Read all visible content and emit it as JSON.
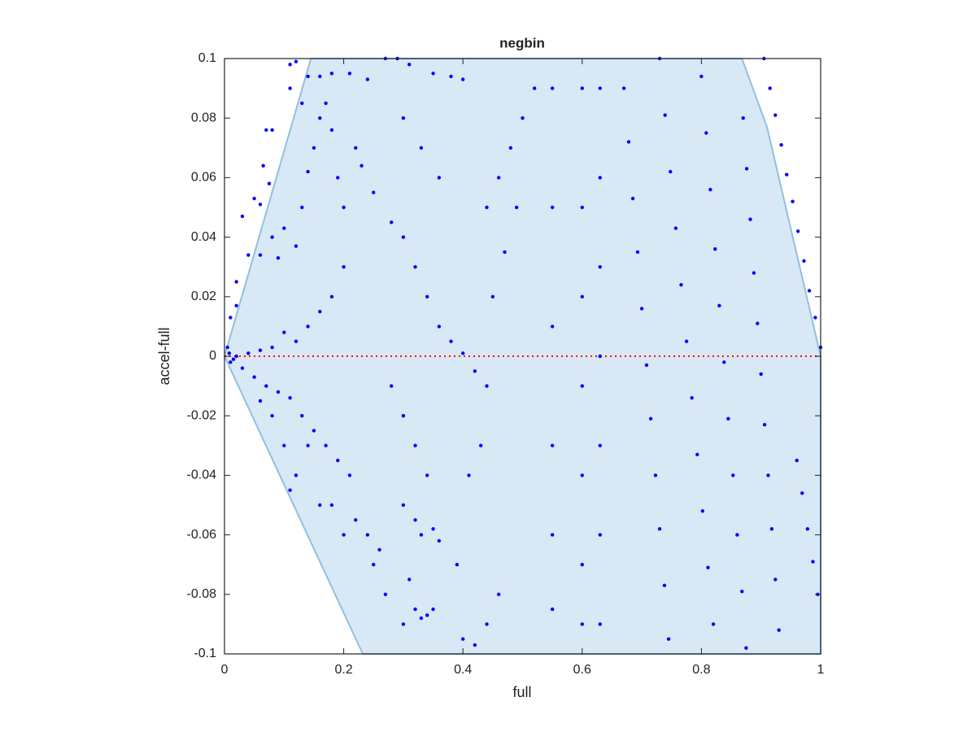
{
  "chart_data": {
    "type": "scatter",
    "title": "negbin",
    "xlabel": "full",
    "ylabel": "accel-full",
    "xlim": [
      0,
      1
    ],
    "ylim": [
      -0.1,
      0.1
    ],
    "xticks": [
      0,
      0.2,
      0.4,
      0.6,
      0.8,
      1
    ],
    "yticks": [
      -0.1,
      -0.08,
      -0.06,
      -0.04,
      -0.02,
      0,
      0.02,
      0.04,
      0.06,
      0.08,
      0.1
    ],
    "color": "#0000ff",
    "hline": 0,
    "hline_color": "#ff0000",
    "region": {
      "color": "#d9e8f5",
      "edge_color": "#8fc0e0",
      "x": [
        0,
        0.145,
        0.868,
        0.91,
        1,
        1,
        0.232
      ],
      "y": [
        0,
        0.1,
        0.1,
        0.077,
        0,
        -0.1,
        -0.1
      ]
    },
    "x": [
      0.11,
      0.12,
      0.11,
      0.07,
      0.08,
      0.065,
      0.075,
      0.05,
      0.06,
      0.03,
      0.02,
      0.01,
      0.02,
      0.04,
      0.06,
      0.08,
      0.09,
      0.1,
      0.12,
      0.13,
      0.14,
      0.15,
      0.16,
      0.17,
      0.18,
      0.19,
      0.2,
      0.13,
      0.14,
      0.16,
      0.18,
      0.21,
      0.24,
      0.22,
      0.23,
      0.25,
      0.2,
      0.18,
      0.16,
      0.14,
      0.12,
      0.1,
      0.08,
      0.06,
      0.04,
      0.02,
      0.01,
      0.03,
      0.05,
      0.07,
      0.09,
      0.11,
      0.13,
      0.15,
      0.17,
      0.19,
      0.21,
      0.12,
      0.11,
      0.14,
      0.16,
      0.18,
      0.2,
      0.22,
      0.24,
      0.26,
      0.08,
      0.06,
      0.1,
      0.005,
      0.015,
      0.008,
      0.27,
      0.29,
      0.31,
      0.35,
      0.38,
      0.4,
      0.3,
      0.33,
      0.36,
      0.28,
      0.3,
      0.32,
      0.34,
      0.36,
      0.38,
      0.4,
      0.42,
      0.44,
      0.28,
      0.3,
      0.32,
      0.34,
      0.3,
      0.32,
      0.33,
      0.35,
      0.36,
      0.31,
      0.32,
      0.33,
      0.34,
      0.35,
      0.3,
      0.4,
      0.42,
      0.44,
      0.46,
      0.27,
      0.25,
      0.39,
      0.41,
      0.43,
      0.45,
      0.47,
      0.49,
      0.48,
      0.5,
      0.52,
      0.46,
      0.44,
      0.55,
      0.55,
      0.55,
      0.55,
      0.55,
      0.55,
      0.6,
      0.6,
      0.6,
      0.6,
      0.6,
      0.6,
      0.6,
      0.63,
      0.63,
      0.63,
      0.63,
      0.63,
      0.63,
      0.63,
      0.67,
      0.678,
      0.685,
      0.693,
      0.7,
      0.708,
      0.715,
      0.723,
      0.73,
      0.738,
      0.745,
      0.73,
      0.739,
      0.748,
      0.757,
      0.766,
      0.775,
      0.784,
      0.793,
      0.802,
      0.811,
      0.82,
      0.8,
      0.808,
      0.815,
      0.823,
      0.83,
      0.838,
      0.845,
      0.853,
      0.86,
      0.868,
      0.875,
      0.87,
      0.876,
      0.882,
      0.888,
      0.894,
      0.9,
      0.906,
      0.912,
      0.918,
      0.924,
      0.93,
      0.905,
      0.915,
      0.924,
      0.934,
      0.943,
      0.953,
      0.962,
      0.972,
      0.981,
      0.991,
      1,
      0.96,
      0.969,
      0.978,
      0.987,
      0.995
    ],
    "y": [
      0.098,
      0.099,
      0.09,
      0.076,
      0.076,
      0.064,
      0.058,
      0.053,
      0.051,
      0.047,
      0.025,
      0.013,
      0.017,
      0.034,
      0.034,
      0.04,
      0.033,
      0.043,
      0.037,
      0.05,
      0.062,
      0.07,
      0.08,
      0.085,
      0.076,
      0.06,
      0.05,
      0.085,
      0.094,
      0.094,
      0.095,
      0.095,
      0.093,
      0.07,
      0.064,
      0.055,
      0.03,
      0.02,
      0.015,
      0.01,
      0.005,
      0.008,
      0.003,
      0.002,
      0.001,
      0,
      -0.002,
      -0.004,
      -0.007,
      -0.01,
      -0.012,
      -0.014,
      -0.02,
      -0.025,
      -0.03,
      -0.035,
      -0.04,
      -0.04,
      -0.045,
      -0.03,
      -0.05,
      -0.05,
      -0.06,
      -0.055,
      -0.06,
      -0.065,
      -0.02,
      -0.015,
      -0.03,
      0.003,
      -0.001,
      0.001,
      0.1,
      0.1,
      0.098,
      0.095,
      0.094,
      0.093,
      0.08,
      0.07,
      0.06,
      0.045,
      0.04,
      0.03,
      0.02,
      0.01,
      0.005,
      0.001,
      -0.005,
      -0.01,
      -0.01,
      -0.02,
      -0.03,
      -0.04,
      -0.05,
      -0.055,
      -0.06,
      -0.058,
      -0.062,
      -0.075,
      -0.085,
      -0.088,
      -0.087,
      -0.085,
      -0.09,
      -0.095,
      -0.097,
      -0.09,
      -0.08,
      -0.08,
      -0.07,
      -0.07,
      -0.04,
      -0.03,
      0.02,
      0.035,
      0.05,
      0.07,
      0.08,
      0.09,
      0.06,
      0.05,
      0.09,
      0.05,
      0.01,
      -0.03,
      -0.06,
      -0.085,
      0.09,
      0.05,
      0.02,
      -0.01,
      -0.04,
      -0.07,
      -0.09,
      0.09,
      0.06,
      0.03,
      0,
      -0.03,
      -0.06,
      -0.09,
      0.09,
      0.072,
      0.053,
      0.035,
      0.016,
      -0.003,
      -0.021,
      -0.04,
      -0.058,
      -0.077,
      -0.095,
      0.1,
      0.081,
      0.062,
      0.043,
      0.024,
      0.005,
      -0.014,
      -0.033,
      -0.052,
      -0.071,
      -0.09,
      0.094,
      0.075,
      0.056,
      0.036,
      0.017,
      -0.002,
      -0.021,
      -0.04,
      -0.06,
      -0.079,
      -0.098,
      0.08,
      0.063,
      0.046,
      0.028,
      0.011,
      -0.006,
      -0.023,
      -0.04,
      -0.058,
      -0.075,
      -0.092,
      0.1,
      0.09,
      0.081,
      0.071,
      0.061,
      0.052,
      0.042,
      0.032,
      0.022,
      0.013,
      0.003,
      -0.035,
      -0.046,
      -0.058,
      -0.069,
      -0.08
    ]
  }
}
